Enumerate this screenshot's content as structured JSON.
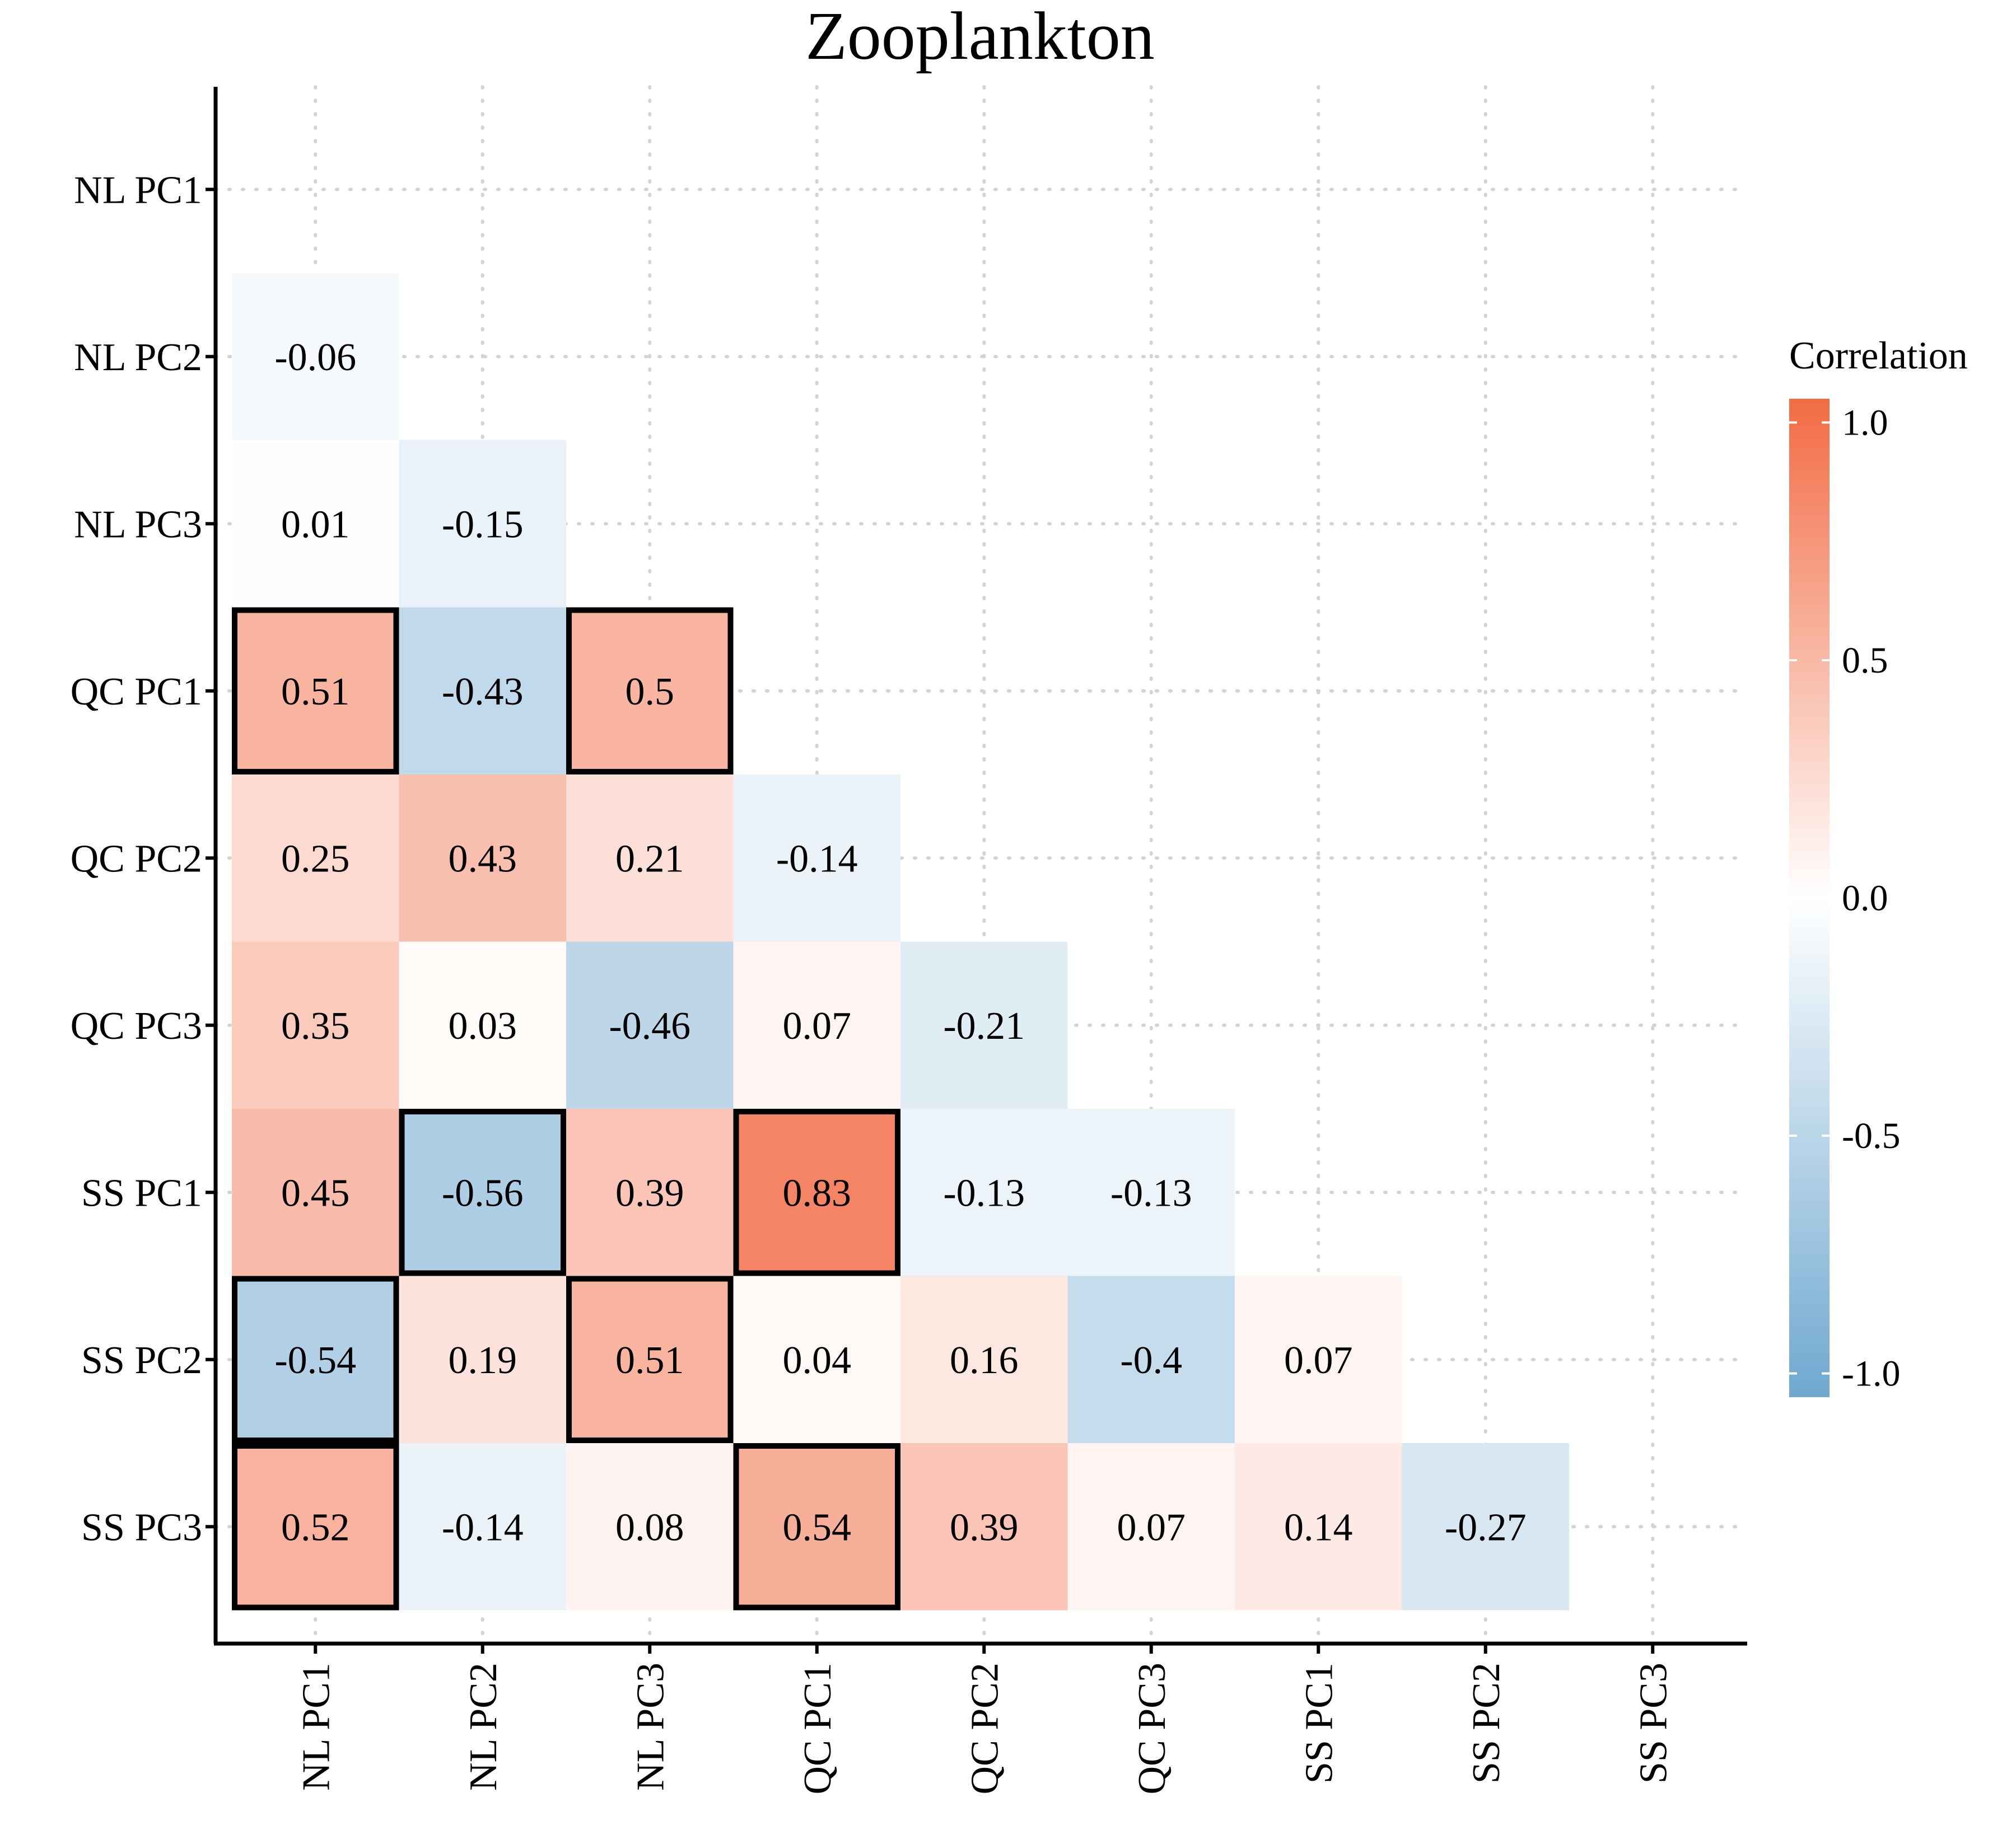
{
  "chart_data": {
    "type": "heatmap",
    "title": "Zooplankton",
    "variables": [
      "NL PC1",
      "NL PC2",
      "NL PC3",
      "QC PC1",
      "QC PC2",
      "QC PC3",
      "SS PC1",
      "SS PC2",
      "SS PC3"
    ],
    "cells": [
      {
        "row": "NL PC2",
        "col": "NL PC1",
        "value": -0.06,
        "significant": false
      },
      {
        "row": "NL PC3",
        "col": "NL PC1",
        "value": 0.01,
        "significant": false
      },
      {
        "row": "NL PC3",
        "col": "NL PC2",
        "value": -0.15,
        "significant": false
      },
      {
        "row": "QC PC1",
        "col": "NL PC1",
        "value": 0.51,
        "significant": true
      },
      {
        "row": "QC PC1",
        "col": "NL PC2",
        "value": -0.43,
        "significant": false
      },
      {
        "row": "QC PC1",
        "col": "NL PC3",
        "value": 0.5,
        "significant": true
      },
      {
        "row": "QC PC2",
        "col": "NL PC1",
        "value": 0.25,
        "significant": false
      },
      {
        "row": "QC PC2",
        "col": "NL PC2",
        "value": 0.43,
        "significant": false
      },
      {
        "row": "QC PC2",
        "col": "NL PC3",
        "value": 0.21,
        "significant": false
      },
      {
        "row": "QC PC2",
        "col": "QC PC1",
        "value": -0.14,
        "significant": false
      },
      {
        "row": "QC PC3",
        "col": "NL PC1",
        "value": 0.35,
        "significant": false
      },
      {
        "row": "QC PC3",
        "col": "NL PC2",
        "value": 0.03,
        "significant": false
      },
      {
        "row": "QC PC3",
        "col": "NL PC3",
        "value": -0.46,
        "significant": false
      },
      {
        "row": "QC PC3",
        "col": "QC PC1",
        "value": 0.07,
        "significant": false
      },
      {
        "row": "QC PC3",
        "col": "QC PC2",
        "value": -0.21,
        "significant": false
      },
      {
        "row": "SS PC1",
        "col": "NL PC1",
        "value": 0.45,
        "significant": false
      },
      {
        "row": "SS PC1",
        "col": "NL PC2",
        "value": -0.56,
        "significant": true
      },
      {
        "row": "SS PC1",
        "col": "NL PC3",
        "value": 0.39,
        "significant": false
      },
      {
        "row": "SS PC1",
        "col": "QC PC1",
        "value": 0.83,
        "significant": true
      },
      {
        "row": "SS PC1",
        "col": "QC PC2",
        "value": -0.13,
        "significant": false
      },
      {
        "row": "SS PC1",
        "col": "QC PC3",
        "value": -0.13,
        "significant": false
      },
      {
        "row": "SS PC2",
        "col": "NL PC1",
        "value": -0.54,
        "significant": true
      },
      {
        "row": "SS PC2",
        "col": "NL PC2",
        "value": 0.19,
        "significant": false
      },
      {
        "row": "SS PC2",
        "col": "NL PC3",
        "value": 0.51,
        "significant": true
      },
      {
        "row": "SS PC2",
        "col": "QC PC1",
        "value": 0.04,
        "significant": false
      },
      {
        "row": "SS PC2",
        "col": "QC PC2",
        "value": 0.16,
        "significant": false
      },
      {
        "row": "SS PC2",
        "col": "QC PC3",
        "value": -0.4,
        "significant": false
      },
      {
        "row": "SS PC2",
        "col": "SS PC1",
        "value": 0.07,
        "significant": false
      },
      {
        "row": "SS PC3",
        "col": "NL PC1",
        "value": 0.52,
        "significant": true
      },
      {
        "row": "SS PC3",
        "col": "NL PC2",
        "value": -0.14,
        "significant": false
      },
      {
        "row": "SS PC3",
        "col": "NL PC3",
        "value": 0.08,
        "significant": false
      },
      {
        "row": "SS PC3",
        "col": "QC PC1",
        "value": 0.54,
        "significant": true
      },
      {
        "row": "SS PC3",
        "col": "QC PC2",
        "value": 0.39,
        "significant": false
      },
      {
        "row": "SS PC3",
        "col": "QC PC3",
        "value": 0.07,
        "significant": false
      },
      {
        "row": "SS PC3",
        "col": "SS PC1",
        "value": 0.14,
        "significant": false
      },
      {
        "row": "SS PC3",
        "col": "SS PC2",
        "value": -0.27,
        "significant": false
      }
    ],
    "color_scale": {
      "range": [
        -1,
        1
      ],
      "low_color": "#6FA8D0",
      "mid_color": "#FFFFFF",
      "high_color": "#F26B43"
    },
    "legend": {
      "title": "Correlation",
      "ticks": [
        "1.0",
        "0.5",
        "0.0",
        "-0.5",
        "-1.0"
      ],
      "tick_values": [
        1.0,
        0.5,
        0.0,
        -0.5,
        -1.0
      ],
      "placement": "right"
    },
    "grid": true,
    "grid_style": "dotted",
    "x_tick_rotation": -90
  }
}
